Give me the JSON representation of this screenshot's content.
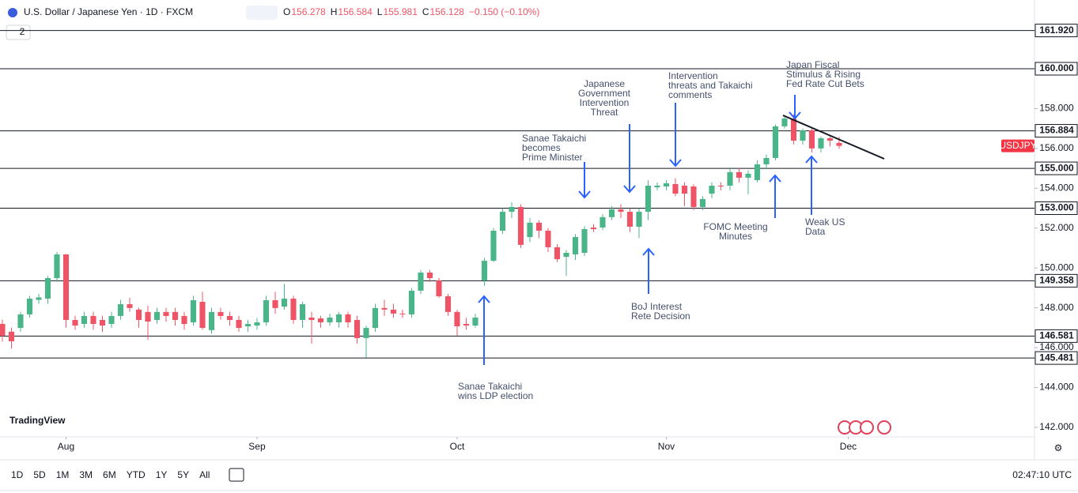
{
  "chart_data": {
    "type": "candlestick",
    "title": "U.S. Dollar / Japanese Yen · 1D · FXCM",
    "legend": [
      {
        "key": "O",
        "value": "156.278"
      },
      {
        "key": "H",
        "value": "156.584"
      },
      {
        "key": "L",
        "value": "155.981"
      },
      {
        "key": "C",
        "value": "156.128"
      }
    ],
    "change": "−0.150 (−0.10%)",
    "badge": "2",
    "brand": "TradingView",
    "symbol_tag": "USDJPY",
    "up_color": "#4bb58a",
    "down_color": "#ef5466",
    "open": [
      147.19,
      146.8,
      146.99,
      147.67,
      148.4,
      148.46,
      149.49,
      150.68,
      147.39,
      147.19,
      147.59,
      147.39,
      147.19,
      147.59,
      148.18,
      147.91,
      147.79,
      147.39,
      147.79,
      147.79,
      147.59,
      147.27,
      148.3,
      146.88,
      147.79,
      147.59,
      147.39,
      147.07,
      147.11,
      147.27,
      148.38,
      148.06,
      148.46,
      147.39,
      147.51,
      147.47,
      147.27,
      147.27,
      147.67,
      147.39,
      146.48,
      146.99,
      147.99,
      147.91,
      147.71,
      147.67,
      148.86,
      149.77,
      149.37,
      148.58,
      147.79,
      147.19,
      147.11,
      149.37,
      150.36,
      151.87,
      152.82,
      153.06,
      151.55,
      152.27,
      151.87,
      151.04,
      150.56,
      150.68,
      150.76,
      152.03,
      152.03,
      152.55,
      152.94,
      152.82,
      152.07,
      152.82,
      154.05,
      154.09,
      154.21,
      154.13,
      154.09,
      153.06,
      153.73,
      154.13,
      154.13,
      154.81,
      154.53,
      154.41,
      155.2,
      155.52,
      157.11,
      157.5,
      156.39,
      156.91,
      156.0,
      156.51,
      156.278
    ],
    "high": [
      147.4,
      147.0,
      147.8,
      148.6,
      148.7,
      149.6,
      150.8,
      150.7,
      147.6,
      147.8,
      147.8,
      147.6,
      147.8,
      148.4,
      148.5,
      148.0,
      148.1,
      148.0,
      148.0,
      148.0,
      147.8,
      148.6,
      148.8,
      148.0,
      148.0,
      147.8,
      147.6,
      147.4,
      147.5,
      148.6,
      148.8,
      149.2,
      148.6,
      148.3,
      147.8,
      147.6,
      147.7,
      147.8,
      147.8,
      147.6,
      147.1,
      148.2,
      148.4,
      148.2,
      147.9,
      149.0,
      149.9,
      149.9,
      149.5,
      148.7,
      147.9,
      147.5,
      147.7,
      150.5,
      152.0,
      153.0,
      153.3,
      153.2,
      152.5,
      152.4,
      152.0,
      151.2,
      150.9,
      151.7,
      152.1,
      152.2,
      152.7,
      153.1,
      153.2,
      153.0,
      153.0,
      154.4,
      154.3,
      154.4,
      154.5,
      154.3,
      154.2,
      153.6,
      154.3,
      154.3,
      155.0,
      155.0,
      154.9,
      155.4,
      155.7,
      157.2,
      157.6,
      157.7,
      157.0,
      157.0,
      156.6,
      156.6,
      156.584
    ],
    "low": [
      146.3,
      145.95,
      146.8,
      147.5,
      148.2,
      148.2,
      149.3,
      147.0,
      146.9,
      147.0,
      146.9,
      146.8,
      147.0,
      147.4,
      147.8,
      147.0,
      146.4,
      147.2,
      147.3,
      147.1,
      146.9,
      147.1,
      146.9,
      146.7,
      147.4,
      147.1,
      146.8,
      146.8,
      146.9,
      147.1,
      147.7,
      147.9,
      147.2,
      147.0,
      146.2,
      147.0,
      147.1,
      147.0,
      147.0,
      146.2,
      145.5,
      146.8,
      147.6,
      147.5,
      147.5,
      147.5,
      148.7,
      149.3,
      148.5,
      147.6,
      146.6,
      146.9,
      147.0,
      149.1,
      150.3,
      151.7,
      152.5,
      151.0,
      151.3,
      151.5,
      150.8,
      150.3,
      149.6,
      150.4,
      150.6,
      151.8,
      151.9,
      152.4,
      152.5,
      151.8,
      151.5,
      152.4,
      153.9,
      153.9,
      153.6,
      153.1,
      152.9,
      152.9,
      153.5,
      153.9,
      153.9,
      154.3,
      153.7,
      154.3,
      155.0,
      155.4,
      157.0,
      156.2,
      156.2,
      155.8,
      155.8,
      156.1,
      155.981
    ],
    "close": [
      146.6,
      146.32,
      147.67,
      148.46,
      148.52,
      149.49,
      150.68,
      147.39,
      147.11,
      147.59,
      147.19,
      147.11,
      147.59,
      148.18,
      147.99,
      147.39,
      147.31,
      147.79,
      147.59,
      147.39,
      147.19,
      148.38,
      146.99,
      147.79,
      147.59,
      147.39,
      146.99,
      147.19,
      147.27,
      148.38,
      147.99,
      148.46,
      147.39,
      148.18,
      147.39,
      147.27,
      147.51,
      147.67,
      147.27,
      146.48,
      146.99,
      147.99,
      147.91,
      147.71,
      147.67,
      148.86,
      149.77,
      149.49,
      148.58,
      147.79,
      147.07,
      147.11,
      147.51,
      150.36,
      151.87,
      152.82,
      153.06,
      151.16,
      152.27,
      151.87,
      151.04,
      150.44,
      150.76,
      151.55,
      151.95,
      151.95,
      152.55,
      152.94,
      152.82,
      152.07,
      152.82,
      154.13,
      154.13,
      154.25,
      153.73,
      153.73,
      153.06,
      153.46,
      154.13,
      154.09,
      154.81,
      154.53,
      154.73,
      155.2,
      155.52,
      157.11,
      157.5,
      156.39,
      156.91,
      156.0,
      156.51,
      156.39,
      156.128
    ],
    "xlim": [
      -0.26,
      113.48
    ],
    "xticks": [
      {
        "value": 7,
        "label": "Aug"
      },
      {
        "value": 28,
        "label": "Sep"
      },
      {
        "value": 50,
        "label": "Oct"
      },
      {
        "value": 73,
        "label": "Nov"
      },
      {
        "value": 93,
        "label": "Dec"
      }
    ],
    "ylim": [
      141.52,
      163.45
    ],
    "yticks": [
      {
        "value": 142,
        "label": "142.000"
      },
      {
        "value": 144,
        "label": "144.000"
      },
      {
        "value": 146,
        "label": "146.000"
      },
      {
        "value": 148,
        "label": "148.000"
      },
      {
        "value": 150,
        "label": "150.000"
      },
      {
        "value": 152,
        "label": "152.000"
      },
      {
        "value": 154,
        "label": "154.000"
      },
      {
        "value": 156,
        "label": "156.000"
      },
      {
        "value": 158,
        "label": "158.000"
      }
    ],
    "levels": [
      {
        "value": 161.92,
        "label": "161.920"
      },
      {
        "value": 160,
        "label": "160.000"
      },
      {
        "value": 156.884,
        "label": "156.884"
      },
      {
        "value": 155,
        "label": "155.000"
      },
      {
        "value": 153,
        "label": "153.000"
      },
      {
        "value": 149.358,
        "label": "149.358"
      },
      {
        "value": 146.581,
        "label": "146.581"
      },
      {
        "value": 145.481,
        "label": "145.481"
      }
    ],
    "annotations": [
      {
        "lines": [
          "Sanae Takaichi",
          "wins LDP election"
        ]
      },
      {
        "lines": [
          "Sanae Takaichi",
          "becomes",
          "Prime Minister"
        ]
      },
      {
        "lines": [
          "Japanese",
          "Government",
          "Intervention",
          "Threat"
        ]
      },
      {
        "lines": [
          "BoJ Interest",
          "Rete Decision"
        ]
      },
      {
        "lines": [
          "Intervention",
          "threats and Takaichi",
          "comments"
        ]
      },
      {
        "lines": [
          "FOMC Meeting",
          "Minutes"
        ]
      },
      {
        "lines": [
          "Japan Fiscal",
          "Stimulus & Rising",
          "Fed Rate Cut Bets"
        ]
      },
      {
        "lines": [
          "Weak US",
          "Data"
        ]
      }
    ],
    "ranges": [
      "1D",
      "5D",
      "1M",
      "3M",
      "6M",
      "YTD",
      "1Y",
      "5Y",
      "All"
    ],
    "clock": "02:47:10 UTC"
  }
}
